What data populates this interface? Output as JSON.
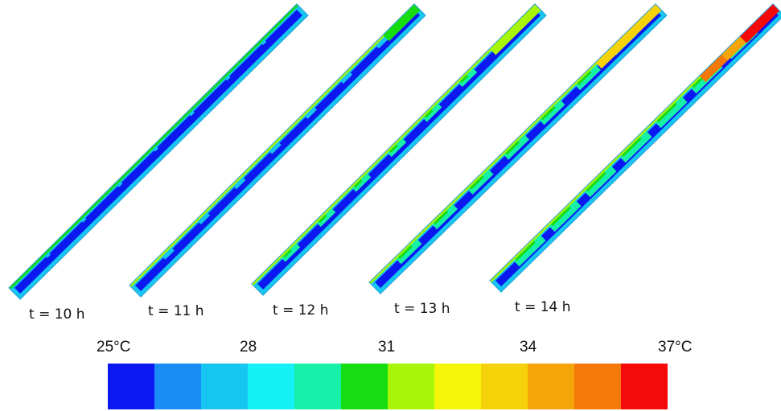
{
  "panels": [
    {
      "label": "t = 10 h",
      "melted_level": 0
    },
    {
      "label": "t = 11 h",
      "melted_level": 1
    },
    {
      "label": "t = 12 h",
      "melted_level": 2
    },
    {
      "label": "t = 13 h",
      "melted_level": 3
    },
    {
      "label": "t = 14 h",
      "melted_level": 4
    }
  ],
  "legend": {
    "ticks": [
      {
        "value": "25",
        "unit": "°C"
      },
      {
        "value": "28",
        "unit": ""
      },
      {
        "value": "31",
        "unit": ""
      },
      {
        "value": "34",
        "unit": ""
      },
      {
        "value": "37",
        "unit": "°C"
      }
    ],
    "colors": [
      "#0b19f0",
      "#1a8cf5",
      "#16c6f0",
      "#14f2f5",
      "#16f0a8",
      "#16dc12",
      "#a8f50a",
      "#f5f50a",
      "#f5d20a",
      "#f5a50a",
      "#f5780a",
      "#f50a0a"
    ]
  }
}
